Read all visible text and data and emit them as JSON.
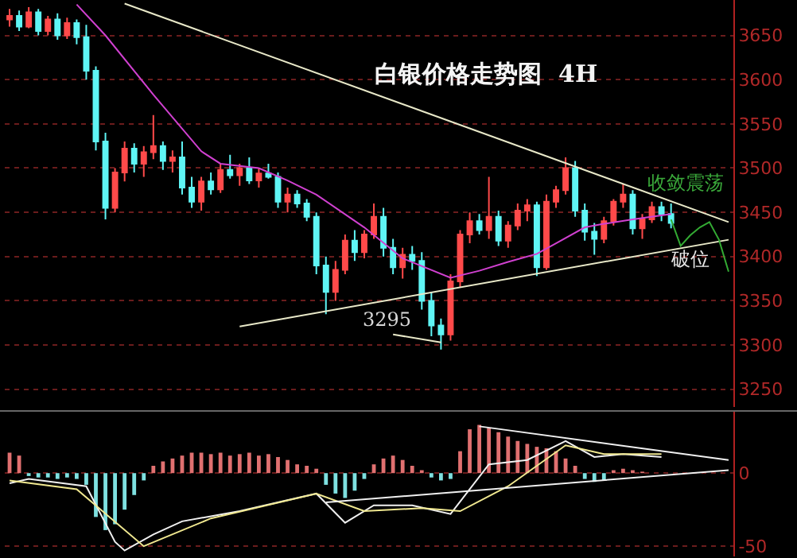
{
  "chart_data": [
    {
      "type": "candlestick",
      "title": "白银价格走势图  4H",
      "categories": [
        null,
        null,
        null,
        null,
        null,
        null,
        null,
        null,
        null,
        null,
        null,
        null,
        null,
        null,
        null,
        null,
        null,
        null,
        null,
        null,
        null,
        null,
        null,
        null,
        null,
        null,
        null,
        null,
        null,
        null,
        null,
        null,
        null,
        null,
        null,
        null,
        null,
        null,
        null,
        null,
        null,
        null,
        null,
        null,
        null,
        null,
        null,
        null,
        null,
        null,
        null,
        null,
        null,
        null,
        null,
        null,
        null,
        null,
        null,
        null,
        null,
        null,
        null,
        null,
        null,
        null,
        null,
        null,
        null,
        null,
        null,
        null,
        null,
        null,
        null,
        null
      ],
      "ylim": [
        3230,
        3690
      ],
      "yticks": [
        3250,
        3300,
        3350,
        3400,
        3450,
        3500,
        3550,
        3600,
        3650
      ],
      "grid": "y",
      "tick_labels": "y",
      "series": [
        {
          "type": "line",
          "color": "#d040d0",
          "values": [
            null,
            null,
            null,
            null,
            null,
            null,
            null,
            3685,
            null,
            null,
            3650,
            null,
            null,
            null,
            null,
            3583,
            null,
            null,
            null,
            null,
            3519,
            null,
            3505,
            null,
            null,
            null,
            3500,
            null,
            null,
            3486,
            null,
            null,
            3470,
            null,
            null,
            null,
            null,
            3433,
            null,
            null,
            null,
            3398,
            null,
            null,
            null,
            null,
            3376,
            null,
            null,
            3384,
            null,
            null,
            3394,
            null,
            null,
            3403,
            null,
            3415,
            null,
            null,
            3433,
            null,
            3437,
            null,
            null,
            3442,
            null,
            null,
            null,
            3448,
            null,
            null,
            null,
            null,
            null,
            null
          ]
        },
        {
          "type": "line",
          "color": "#e8e8c8",
          "values": [
            null,
            null,
            null,
            null,
            null,
            null,
            null,
            null,
            null,
            null,
            null,
            null,
            3686,
            null,
            null,
            null,
            null,
            null,
            null,
            null,
            null,
            null,
            null,
            null,
            null,
            null,
            null,
            null,
            null,
            null,
            null,
            null,
            null,
            null,
            null,
            null,
            null,
            null,
            null,
            null,
            null,
            null,
            null,
            null,
            null,
            null,
            null,
            null,
            null,
            null,
            null,
            null,
            null,
            null,
            null,
            null,
            null,
            null,
            null,
            null,
            null,
            null,
            null,
            null,
            null,
            null,
            null,
            null,
            null,
            null,
            null,
            null,
            null,
            null,
            null,
            3439
          ]
        },
        {
          "type": "line",
          "color": "#e8e8c8",
          "values": [
            null,
            null,
            null,
            null,
            null,
            null,
            null,
            null,
            null,
            null,
            null,
            null,
            null,
            null,
            null,
            null,
            null,
            null,
            null,
            null,
            null,
            null,
            null,
            null,
            3321,
            null,
            null,
            null,
            null,
            null,
            null,
            null,
            null,
            null,
            null,
            null,
            null,
            null,
            null,
            null,
            null,
            null,
            null,
            null,
            null,
            null,
            null,
            null,
            null,
            null,
            null,
            null,
            null,
            null,
            null,
            null,
            null,
            null,
            null,
            null,
            null,
            null,
            null,
            null,
            null,
            null,
            null,
            null,
            null,
            null,
            null,
            null,
            null,
            null,
            null,
            3419
          ]
        },
        {
          "type": "line",
          "color": "#e8e8c8",
          "values": [
            null,
            null,
            null,
            null,
            null,
            null,
            null,
            null,
            null,
            null,
            null,
            null,
            null,
            null,
            null,
            null,
            null,
            null,
            null,
            null,
            null,
            null,
            null,
            null,
            null,
            null,
            null,
            null,
            null,
            null,
            null,
            null,
            null,
            null,
            null,
            null,
            null,
            null,
            null,
            null,
            3312,
            null,
            null,
            null,
            null,
            3303,
            null,
            null,
            null,
            null,
            null,
            null,
            null,
            null,
            null,
            null,
            null,
            null,
            null,
            null,
            null,
            null,
            null,
            null,
            null,
            null,
            null,
            null,
            null,
            null,
            null,
            null,
            null,
            null,
            null,
            null
          ]
        },
        {
          "type": "line",
          "color": "#33aa33",
          "values": [
            null,
            null,
            null,
            null,
            null,
            null,
            null,
            null,
            null,
            null,
            null,
            null,
            null,
            null,
            null,
            null,
            null,
            null,
            null,
            null,
            null,
            null,
            null,
            null,
            null,
            null,
            null,
            null,
            null,
            null,
            null,
            null,
            null,
            null,
            null,
            null,
            null,
            null,
            null,
            null,
            null,
            null,
            null,
            null,
            null,
            null,
            null,
            null,
            null,
            null,
            null,
            null,
            null,
            null,
            null,
            null,
            null,
            null,
            null,
            null,
            null,
            null,
            null,
            null,
            null,
            null,
            null,
            null,
            null,
            3442,
            3412,
            3424,
            3433,
            3439,
            3419,
            3383
          ]
        },
        {
          "ohlc": [
            [
              3668,
              3680,
              3660,
              3672
            ],
            [
              3672,
              3678,
              3655,
              3660
            ],
            [
              3660,
              3682,
              3658,
              3676
            ],
            [
              3676,
              3680,
              3650,
              3655
            ],
            [
              3655,
              3672,
              3650,
              3668
            ],
            [
              3668,
              3675,
              3645,
              3650
            ],
            [
              3650,
              3670,
              3646,
              3664
            ],
            [
              3664,
              3668,
              3640,
              3648
            ],
            [
              3648,
              3662,
              3600,
              3610
            ],
            [
              3610,
              3615,
              3520,
              3530
            ],
            [
              3530,
              3540,
              3442,
              3455
            ],
            [
              3455,
              3500,
              3450,
              3495
            ],
            [
              3495,
              3530,
              3485,
              3522
            ],
            [
              3522,
              3528,
              3495,
              3505
            ],
            [
              3505,
              3525,
              3490,
              3518
            ],
            [
              3518,
              3560,
              3510,
              3525
            ],
            [
              3525,
              3530,
              3498,
              3508
            ],
            [
              3508,
              3520,
              3495,
              3512
            ],
            [
              3512,
              3530,
              3470,
              3478
            ],
            [
              3478,
              3490,
              3455,
              3462
            ],
            [
              3462,
              3490,
              3452,
              3485
            ],
            [
              3485,
              3495,
              3470,
              3476
            ],
            [
              3476,
              3505,
              3472,
              3498
            ],
            [
              3498,
              3515,
              3488,
              3492
            ],
            [
              3492,
              3505,
              3480,
              3500
            ],
            [
              3500,
              3512,
              3482,
              3486
            ],
            [
              3486,
              3500,
              3478,
              3494
            ],
            [
              3494,
              3505,
              3488,
              3490
            ],
            [
              3490,
              3495,
              3455,
              3462
            ],
            [
              3462,
              3478,
              3450,
              3470
            ],
            [
              3470,
              3475,
              3455,
              3460
            ],
            [
              3460,
              3465,
              3440,
              3445
            ],
            [
              3445,
              3450,
              3380,
              3390
            ],
            [
              3390,
              3400,
              3335,
              3360
            ],
            [
              3360,
              3395,
              3350,
              3385
            ],
            [
              3385,
              3425,
              3380,
              3418
            ],
            [
              3418,
              3430,
              3395,
              3405
            ],
            [
              3405,
              3430,
              3398,
              3425
            ],
            [
              3425,
              3460,
              3420,
              3445
            ],
            [
              3445,
              3455,
              3400,
              3410
            ],
            [
              3410,
              3420,
              3380,
              3388
            ],
            [
              3388,
              3410,
              3375,
              3402
            ],
            [
              3402,
              3412,
              3385,
              3395
            ],
            [
              3395,
              3405,
              3340,
              3350
            ],
            [
              3350,
              3360,
              3310,
              3322
            ],
            [
              3322,
              3330,
              3295,
              3312
            ],
            [
              3312,
              3380,
              3305,
              3372
            ],
            [
              3372,
              3430,
              3365,
              3425
            ],
            [
              3425,
              3450,
              3415,
              3440
            ],
            [
              3440,
              3448,
              3425,
              3430
            ],
            [
              3430,
              3490,
              3420,
              3445
            ],
            [
              3445,
              3452,
              3412,
              3418
            ],
            [
              3418,
              3440,
              3410,
              3435
            ],
            [
              3435,
              3460,
              3430,
              3452
            ],
            [
              3452,
              3465,
              3440,
              3458
            ],
            [
              3458,
              3462,
              3378,
              3388
            ],
            [
              3388,
              3470,
              3385,
              3462
            ],
            [
              3462,
              3480,
              3455,
              3475
            ],
            [
              3475,
              3512,
              3470,
              3500
            ],
            [
              3500,
              3508,
              3445,
              3452
            ],
            [
              3452,
              3460,
              3418,
              3428
            ],
            [
              3428,
              3438,
              3402,
              3420
            ],
            [
              3420,
              3445,
              3415,
              3440
            ],
            [
              3440,
              3465,
              3435,
              3462
            ],
            [
              3462,
              3482,
              3455,
              3470
            ],
            [
              3470,
              3475,
              3425,
              3432
            ],
            [
              3432,
              3448,
              3420,
              3442
            ],
            [
              3442,
              3462,
              3438,
              3456
            ],
            [
              3456,
              3462,
              3440,
              3448
            ],
            [
              3448,
              3460,
              3432,
              3438
            ],
            null,
            null,
            null,
            null,
            null,
            null
          ]
        }
      ],
      "annotations": [
        "3295",
        "收敛震荡",
        "破位"
      ]
    },
    {
      "type": "bar",
      "categories": [
        null,
        null,
        null,
        null,
        null,
        null,
        null,
        null,
        null,
        null,
        null,
        null,
        null,
        null,
        null,
        null,
        null,
        null,
        null,
        null,
        null,
        null,
        null,
        null,
        null,
        null,
        null,
        null,
        null,
        null,
        null,
        null,
        null,
        null,
        null,
        null,
        null,
        null,
        null,
        null,
        null,
        null,
        null,
        null,
        null,
        null,
        null,
        null,
        null,
        null,
        null,
        null,
        null,
        null,
        null,
        null,
        null,
        null,
        null,
        null,
        null,
        null,
        null,
        null,
        null,
        null,
        null,
        null,
        null,
        null,
        null,
        null,
        null,
        null,
        null,
        null
      ],
      "ylim": [
        -57,
        42
      ],
      "yticks": [
        -50,
        0
      ],
      "grid": "y",
      "tick_labels": "y",
      "series": [
        {
          "color": "#e07070",
          "values": [
            14,
            12,
            null,
            null,
            null,
            null,
            null,
            null,
            null,
            null,
            null,
            null,
            null,
            null,
            null,
            5,
            8,
            10,
            12,
            14,
            14,
            13,
            14,
            12,
            13,
            14,
            12,
            13,
            11,
            9,
            6,
            5,
            3,
            null,
            null,
            null,
            null,
            null,
            6,
            10,
            12,
            9,
            5,
            2,
            null,
            null,
            null,
            15,
            30,
            33,
            31,
            28,
            25,
            22,
            20,
            18,
            17,
            15,
            10,
            5,
            null,
            null,
            null,
            2,
            3,
            2,
            1,
            null,
            null,
            null,
            null,
            null,
            null,
            null,
            null,
            null
          ]
        },
        {
          "color": "#7ee0e0",
          "values": [
            null,
            null,
            -2,
            -3,
            -3,
            -4,
            -3,
            -4,
            -8,
            -30,
            -39,
            -35,
            -25,
            -15,
            -5,
            null,
            null,
            null,
            null,
            null,
            null,
            null,
            null,
            null,
            null,
            null,
            null,
            null,
            null,
            null,
            null,
            null,
            null,
            -8,
            -14,
            -17,
            -12,
            -4,
            null,
            null,
            null,
            null,
            null,
            null,
            -3,
            -5,
            -4,
            null,
            null,
            null,
            null,
            null,
            null,
            null,
            null,
            null,
            null,
            null,
            null,
            null,
            -4,
            -6,
            -5,
            null,
            null,
            null,
            null,
            null,
            null,
            null,
            null,
            null,
            null,
            null,
            null,
            null
          ]
        },
        {
          "type": "line",
          "color": "#f0f0f0",
          "values": [
            -7,
            null,
            -4,
            null,
            null,
            null,
            null,
            null,
            -9,
            null,
            null,
            -47,
            -53,
            null,
            null,
            -42,
            null,
            null,
            -33,
            null,
            null,
            null,
            null,
            null,
            -26,
            null,
            null,
            null,
            null,
            null,
            null,
            null,
            -14,
            null,
            null,
            -34,
            null,
            null,
            -22,
            null,
            null,
            null,
            -22,
            null,
            null,
            null,
            -28,
            null,
            null,
            null,
            6,
            null,
            null,
            null,
            9,
            null,
            null,
            null,
            22,
            null,
            null,
            11,
            null,
            null,
            13,
            null,
            null,
            null,
            11,
            null,
            null,
            null,
            null,
            null,
            null,
            null
          ]
        },
        {
          "type": "line",
          "color": "#f0e890",
          "values": [
            -5,
            null,
            null,
            null,
            null,
            null,
            null,
            -11,
            null,
            null,
            null,
            null,
            null,
            null,
            -50,
            null,
            null,
            null,
            null,
            null,
            null,
            -31,
            null,
            null,
            null,
            null,
            null,
            null,
            null,
            null,
            null,
            null,
            -14,
            null,
            null,
            null,
            null,
            -26,
            null,
            null,
            null,
            null,
            null,
            -24,
            null,
            null,
            null,
            -26,
            null,
            null,
            null,
            null,
            -9,
            null,
            null,
            null,
            null,
            null,
            19,
            null,
            null,
            null,
            13,
            null,
            null,
            null,
            null,
            null,
            13,
            null,
            null,
            null,
            null,
            null,
            null,
            null
          ]
        },
        {
          "type": "line",
          "color": "#f0f0f0",
          "values": [
            null,
            null,
            null,
            null,
            null,
            null,
            null,
            null,
            null,
            null,
            null,
            null,
            null,
            null,
            null,
            null,
            null,
            null,
            null,
            null,
            null,
            null,
            null,
            null,
            null,
            null,
            null,
            null,
            null,
            null,
            null,
            null,
            null,
            null,
            null,
            null,
            null,
            null,
            null,
            null,
            null,
            null,
            null,
            null,
            null,
            null,
            null,
            null,
            null,
            32,
            null,
            null,
            null,
            null,
            null,
            null,
            null,
            null,
            null,
            null,
            null,
            null,
            null,
            null,
            null,
            null,
            null,
            null,
            null,
            null,
            null,
            null,
            null,
            null,
            null,
            9
          ]
        },
        {
          "type": "line",
          "color": "#f0f0f0",
          "values": [
            null,
            null,
            null,
            null,
            null,
            null,
            null,
            null,
            null,
            null,
            null,
            null,
            null,
            null,
            null,
            null,
            null,
            null,
            null,
            null,
            null,
            null,
            null,
            null,
            null,
            null,
            null,
            null,
            null,
            null,
            null,
            null,
            null,
            -20,
            null,
            null,
            null,
            null,
            null,
            null,
            null,
            null,
            null,
            null,
            null,
            null,
            null,
            null,
            null,
            null,
            null,
            null,
            null,
            null,
            null,
            null,
            null,
            null,
            null,
            null,
            null,
            null,
            null,
            null,
            null,
            null,
            null,
            null,
            null,
            null,
            null,
            null,
            null,
            null,
            null,
            2
          ]
        }
      ]
    }
  ]
}
